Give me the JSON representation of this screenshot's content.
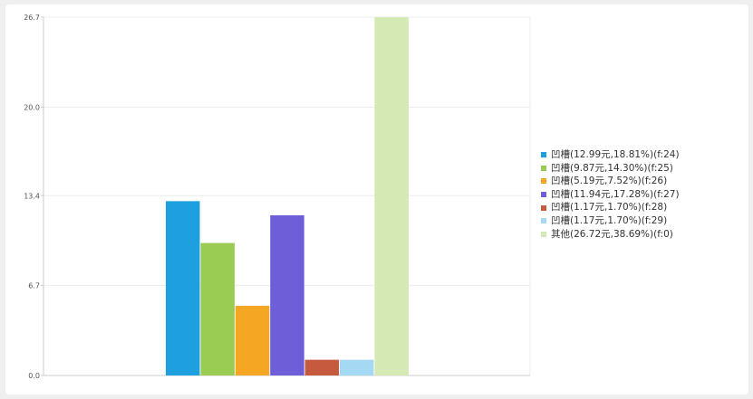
{
  "chart_data": {
    "type": "bar",
    "categories": [
      "凹槽(12.99元,18.81%)(f:24)",
      "凹槽(9.87元,14.30%)(f:25)",
      "凹槽(5.19元,7.52%)(f:26)",
      "凹槽(11.94元,17.28%)(f:27)",
      "凹槽(1.17元,1.70%)(f:28)",
      "凹槽(1.17元,1.70%)(f:29)",
      "其他(26.72元,38.69%)(f:0)"
    ],
    "values": [
      12.99,
      9.87,
      5.19,
      11.94,
      1.17,
      1.17,
      26.72
    ],
    "colors": [
      "#1e9fe0",
      "#9acb52",
      "#f5a623",
      "#6e5fd8",
      "#c55a3e",
      "#a5d8f3",
      "#d4e9b3"
    ],
    "ylim": [
      0,
      26.7
    ],
    "yticks": [
      "0.0",
      "6.7",
      "13.4",
      "20.0",
      "26.7"
    ],
    "grid": true,
    "legend": "right"
  }
}
